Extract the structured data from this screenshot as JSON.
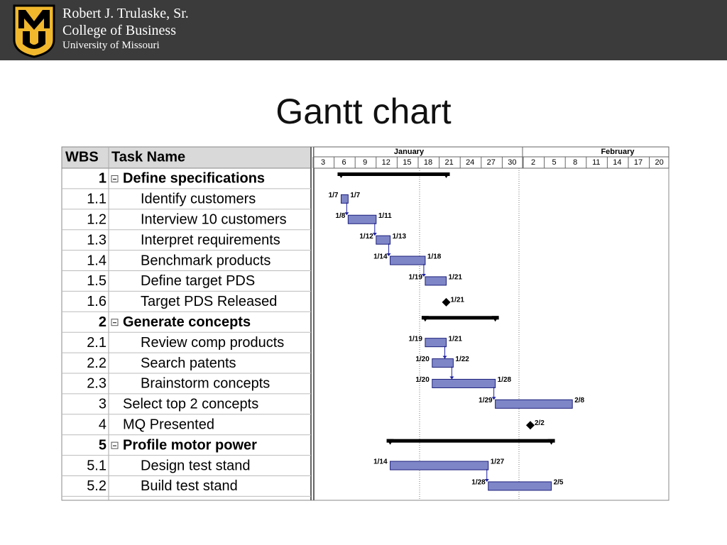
{
  "header": {
    "lines": [
      "Robert J. Trulaske, Sr.",
      "College of Business",
      "University of Missouri"
    ]
  },
  "title": "Gantt chart",
  "table": {
    "columns": [
      "WBS",
      "Task Name"
    ],
    "months": [
      "January",
      "February"
    ],
    "days": [
      3,
      6,
      9,
      12,
      15,
      18,
      21,
      24,
      27,
      30,
      2,
      5,
      8,
      11,
      14,
      17,
      20
    ],
    "rows": [
      {
        "wbs": "1",
        "name": "Define specifications",
        "summary": true
      },
      {
        "wbs": "1.1",
        "name": "Identify customers",
        "start": "1/7",
        "end": "1/7"
      },
      {
        "wbs": "1.2",
        "name": "Interview 10 customers",
        "start": "1/8",
        "end": "1/11"
      },
      {
        "wbs": "1.3",
        "name": "Interpret requirements",
        "start": "1/12",
        "end": "1/13"
      },
      {
        "wbs": "1.4",
        "name": "Benchmark products",
        "start": "1/14",
        "end": "1/18"
      },
      {
        "wbs": "1.5",
        "name": "Define target PDS",
        "start": "1/19",
        "end": "1/21"
      },
      {
        "wbs": "1.6",
        "name": "Target PDS Released",
        "milestone": "1/21"
      },
      {
        "wbs": "2",
        "name": "Generate concepts",
        "summary": true
      },
      {
        "wbs": "2.1",
        "name": "Review comp products",
        "start": "1/19",
        "end": "1/21"
      },
      {
        "wbs": "2.2",
        "name": "Search patents",
        "start": "1/20",
        "end": "1/22"
      },
      {
        "wbs": "2.3",
        "name": "Brainstorm concepts",
        "start": "1/20",
        "end": "1/28"
      },
      {
        "wbs": "3",
        "name": "Select top 2 concepts",
        "start": "1/29",
        "end": "2/8"
      },
      {
        "wbs": "4",
        "name": "MQ Presented",
        "milestone": "2/2"
      },
      {
        "wbs": "5",
        "name": "Profile motor power",
        "summary": true
      },
      {
        "wbs": "5.1",
        "name": "Design test stand",
        "start": "1/14",
        "end": "1/27"
      },
      {
        "wbs": "5.2",
        "name": "Build test stand",
        "start": "1/28",
        "end": "2/5"
      }
    ]
  }
}
